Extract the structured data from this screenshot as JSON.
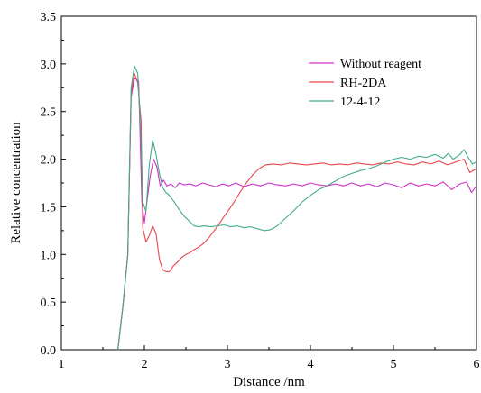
{
  "chart_data": {
    "type": "line",
    "xlabel": "Distance /nm",
    "ylabel": "Relative concentration",
    "xlim": [
      1,
      6
    ],
    "ylim": [
      0,
      3.5
    ],
    "x_ticks": [
      "1",
      "2",
      "3",
      "4",
      "5",
      "6"
    ],
    "y_ticks": [
      "0.0",
      "0.5",
      "1.0",
      "1.5",
      "2.0",
      "2.5",
      "3.0",
      "3.5"
    ],
    "grid": false,
    "legend_position": "top-right",
    "series": [
      {
        "name": "Without reagent",
        "color": "#cc33cc",
        "x": [
          1.68,
          1.74,
          1.8,
          1.84,
          1.88,
          1.93,
          1.97,
          2.0,
          2.03,
          2.07,
          2.11,
          2.15,
          2.19,
          2.23,
          2.27,
          2.32,
          2.37,
          2.42,
          2.48,
          2.55,
          2.62,
          2.7,
          2.78,
          2.86,
          2.94,
          3.02,
          3.1,
          3.2,
          3.3,
          3.4,
          3.5,
          3.6,
          3.7,
          3.8,
          3.9,
          4.0,
          4.1,
          4.2,
          4.3,
          4.4,
          4.5,
          4.6,
          4.7,
          4.8,
          4.9,
          5.0,
          5.1,
          5.2,
          5.3,
          5.4,
          5.5,
          5.6,
          5.7,
          5.8,
          5.88,
          5.94,
          6.0
        ],
        "y": [
          0.0,
          0.45,
          1.0,
          2.65,
          2.85,
          2.82,
          1.55,
          1.33,
          1.55,
          1.82,
          2.0,
          1.92,
          1.72,
          1.78,
          1.72,
          1.74,
          1.7,
          1.75,
          1.73,
          1.74,
          1.72,
          1.75,
          1.73,
          1.71,
          1.74,
          1.72,
          1.75,
          1.71,
          1.74,
          1.72,
          1.75,
          1.73,
          1.72,
          1.74,
          1.72,
          1.75,
          1.73,
          1.72,
          1.74,
          1.72,
          1.75,
          1.72,
          1.74,
          1.71,
          1.75,
          1.73,
          1.7,
          1.75,
          1.72,
          1.74,
          1.72,
          1.76,
          1.68,
          1.74,
          1.76,
          1.65,
          1.72
        ]
      },
      {
        "name": "RH-2DA",
        "color": "#e8474c",
        "x": [
          1.68,
          1.74,
          1.8,
          1.84,
          1.88,
          1.92,
          1.96,
          1.98,
          2.02,
          2.06,
          2.1,
          2.14,
          2.18,
          2.22,
          2.26,
          2.3,
          2.35,
          2.4,
          2.45,
          2.5,
          2.55,
          2.6,
          2.66,
          2.72,
          2.78,
          2.84,
          2.9,
          2.96,
          3.02,
          3.08,
          3.15,
          3.22,
          3.3,
          3.38,
          3.46,
          3.55,
          3.65,
          3.75,
          3.85,
          3.95,
          4.05,
          4.15,
          4.25,
          4.35,
          4.45,
          4.55,
          4.65,
          4.75,
          4.85,
          4.95,
          5.05,
          5.15,
          5.25,
          5.35,
          5.45,
          5.55,
          5.65,
          5.75,
          5.85,
          5.92,
          6.0
        ],
        "y": [
          0.0,
          0.45,
          1.0,
          2.7,
          2.9,
          2.8,
          2.4,
          1.28,
          1.13,
          1.2,
          1.3,
          1.22,
          0.95,
          0.84,
          0.82,
          0.82,
          0.88,
          0.92,
          0.97,
          1.0,
          1.02,
          1.05,
          1.08,
          1.12,
          1.18,
          1.25,
          1.32,
          1.4,
          1.47,
          1.55,
          1.65,
          1.74,
          1.83,
          1.9,
          1.94,
          1.95,
          1.94,
          1.96,
          1.95,
          1.94,
          1.95,
          1.96,
          1.94,
          1.95,
          1.94,
          1.96,
          1.95,
          1.94,
          1.96,
          1.95,
          1.97,
          1.95,
          1.94,
          1.97,
          1.95,
          1.98,
          1.94,
          1.97,
          2.0,
          1.86,
          1.9
        ]
      },
      {
        "name": "12-4-12",
        "color": "#44aa88",
        "x": [
          1.68,
          1.74,
          1.8,
          1.84,
          1.88,
          1.92,
          1.96,
          1.98,
          2.02,
          2.06,
          2.1,
          2.14,
          2.18,
          2.22,
          2.26,
          2.3,
          2.36,
          2.42,
          2.48,
          2.54,
          2.6,
          2.66,
          2.72,
          2.8,
          2.88,
          2.96,
          3.04,
          3.12,
          3.2,
          3.28,
          3.36,
          3.44,
          3.52,
          3.6,
          3.7,
          3.8,
          3.9,
          4.0,
          4.1,
          4.2,
          4.3,
          4.4,
          4.5,
          4.6,
          4.7,
          4.8,
          4.9,
          5.0,
          5.1,
          5.2,
          5.3,
          5.4,
          5.5,
          5.6,
          5.66,
          5.72,
          5.8,
          5.85,
          5.9,
          5.95,
          6.0
        ],
        "y": [
          0.0,
          0.45,
          1.0,
          2.75,
          2.98,
          2.9,
          2.2,
          1.55,
          1.45,
          1.95,
          2.2,
          2.05,
          1.85,
          1.7,
          1.65,
          1.62,
          1.55,
          1.47,
          1.4,
          1.35,
          1.3,
          1.29,
          1.3,
          1.29,
          1.3,
          1.31,
          1.29,
          1.3,
          1.28,
          1.29,
          1.27,
          1.25,
          1.26,
          1.3,
          1.38,
          1.46,
          1.55,
          1.62,
          1.68,
          1.72,
          1.77,
          1.82,
          1.85,
          1.88,
          1.9,
          1.93,
          1.97,
          2.0,
          2.02,
          2.0,
          2.03,
          2.02,
          2.05,
          2.01,
          2.06,
          2.0,
          2.05,
          2.1,
          2.02,
          1.95,
          1.97
        ]
      }
    ]
  }
}
